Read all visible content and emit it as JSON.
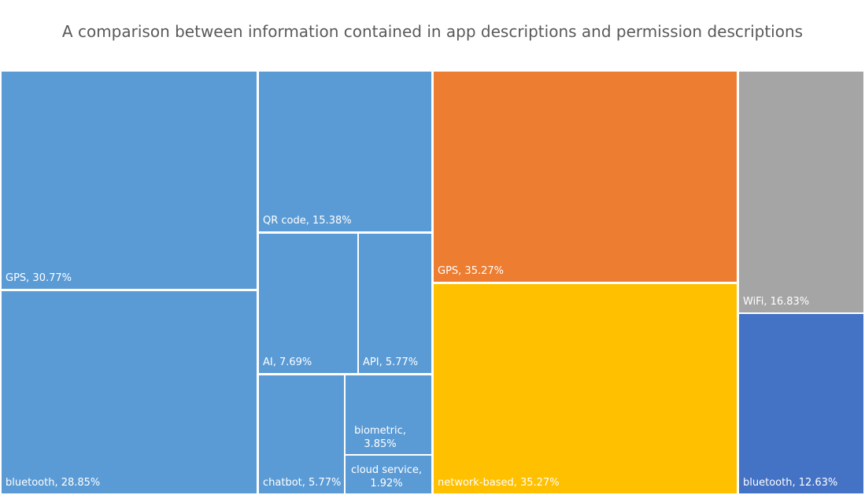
{
  "chart_data": {
    "type": "treemap",
    "title": "A comparison between information contained in app descriptions and permission descriptions",
    "groups": [
      {
        "color": "#5B9BD5",
        "items": [
          {
            "label": "GPS",
            "value": 30.77,
            "display": "GPS, 30.77%"
          },
          {
            "label": "bluetooth",
            "value": 28.85,
            "display": "bluetooth, 28.85%"
          },
          {
            "label": "QR code",
            "value": 15.38,
            "display": "QR code, 15.38%"
          },
          {
            "label": "AI",
            "value": 7.69,
            "display": "AI, 7.69%"
          },
          {
            "label": "API",
            "value": 5.77,
            "display": "API, 5.77%"
          },
          {
            "label": "chatbot",
            "value": 5.77,
            "display": "chatbot, 5.77%"
          },
          {
            "label": "biometric",
            "value": 3.85,
            "display": "biometric, 3.85%"
          },
          {
            "label": "cloud service",
            "value": 1.92,
            "display": "cloud service, 1.92%"
          }
        ]
      },
      {
        "color": "#ED7D31",
        "items": [
          {
            "label": "GPS",
            "value": 35.27,
            "display": "GPS, 35.27%"
          }
        ]
      },
      {
        "color": "#FFC000",
        "items": [
          {
            "label": "network-based",
            "value": 35.27,
            "display": "network-based, 35.27%"
          }
        ]
      },
      {
        "color": "#A5A5A5",
        "items": [
          {
            "label": "WiFi",
            "value": 16.83,
            "display": "WiFi, 16.83%"
          }
        ]
      },
      {
        "color": "#4472C4",
        "items": [
          {
            "label": "bluetooth",
            "value": 12.63,
            "display": "bluetooth, 12.63%"
          }
        ]
      }
    ],
    "legend": "none",
    "grid": false
  }
}
